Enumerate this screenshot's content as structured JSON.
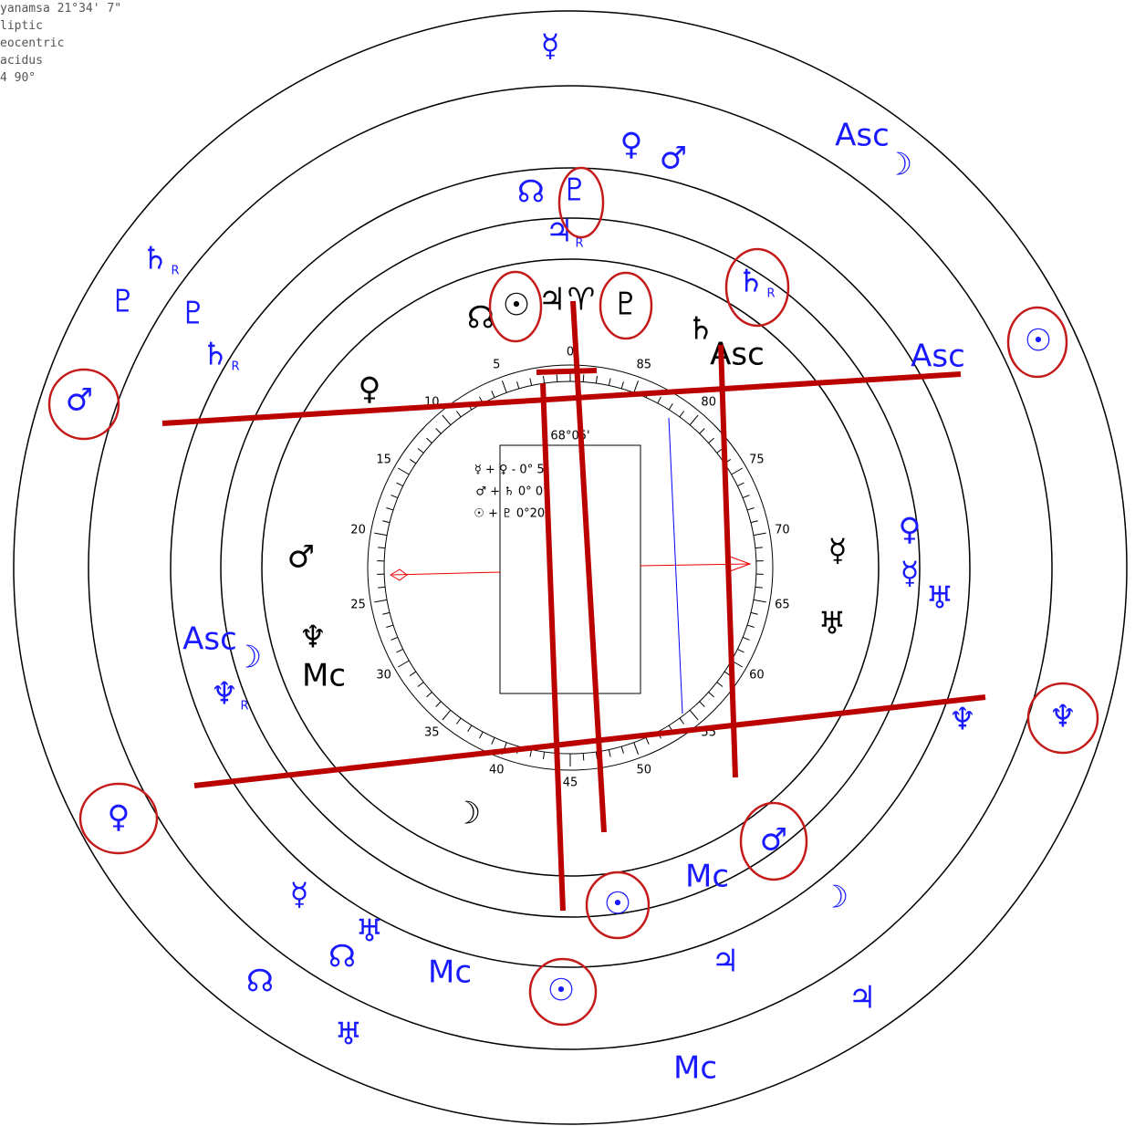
{
  "info": [
    "yanamsa 21°34' 7\"",
    "liptic",
    "eocentric",
    "acidus",
    "4  90°"
  ],
  "dial": {
    "labels": [
      0,
      5,
      10,
      15,
      20,
      25,
      30,
      35,
      40,
      45,
      50,
      55,
      60,
      65,
      70,
      75,
      80,
      85
    ],
    "arc": "68°05'"
  },
  "aspects": [
    "☿ + ♀  - 0° 5'",
    "♂ + ♄    0° 0'",
    "☉ + ♇    0°20'"
  ],
  "glyphs": [
    {
      "symbol": "☿"
    },
    {
      "symbol": "♀"
    },
    {
      "symbol": "♂"
    },
    {
      "symbol": "Asc"
    },
    {
      "symbol": "☽"
    },
    {
      "symbol": "☊"
    },
    {
      "symbol": "♇"
    },
    {
      "symbol": "♃",
      "suffix": "R"
    },
    {
      "symbol": "♄",
      "suffix": "R"
    },
    {
      "symbol": "♇"
    },
    {
      "symbol": "♇"
    },
    {
      "symbol": "♄",
      "suffix": "R"
    },
    {
      "symbol": "♄",
      "suffix": "R"
    },
    {
      "symbol": "☉"
    },
    {
      "symbol": "Asc"
    },
    {
      "symbol": "♂"
    },
    {
      "symbol": "♀"
    },
    {
      "symbol": "☿"
    },
    {
      "symbol": "♅"
    },
    {
      "symbol": "♆"
    },
    {
      "symbol": "♆"
    },
    {
      "symbol": "♀"
    },
    {
      "symbol": "♂"
    },
    {
      "symbol": "☽"
    },
    {
      "symbol": "Mc"
    },
    {
      "symbol": "☉"
    },
    {
      "symbol": "♃"
    },
    {
      "symbol": "♃"
    },
    {
      "symbol": "Mc"
    },
    {
      "symbol": "☉"
    },
    {
      "symbol": "Mc"
    },
    {
      "symbol": "☿"
    },
    {
      "symbol": "♅"
    },
    {
      "symbol": "☊"
    },
    {
      "symbol": "☊"
    },
    {
      "symbol": "♅"
    },
    {
      "symbol": "Asc"
    },
    {
      "symbol": "☽"
    },
    {
      "symbol": "♆",
      "suffix": "R"
    },
    {
      "symbol": "☊"
    },
    {
      "symbol": "☉"
    },
    {
      "symbol": "♃"
    },
    {
      "symbol": "♈"
    },
    {
      "symbol": "♇"
    },
    {
      "symbol": "♄"
    },
    {
      "symbol": "Asc"
    },
    {
      "symbol": "♀"
    },
    {
      "symbol": "♂"
    },
    {
      "symbol": "☿"
    },
    {
      "symbol": "♅"
    },
    {
      "symbol": "♆"
    },
    {
      "symbol": "Mc"
    },
    {
      "symbol": "☽"
    }
  ]
}
